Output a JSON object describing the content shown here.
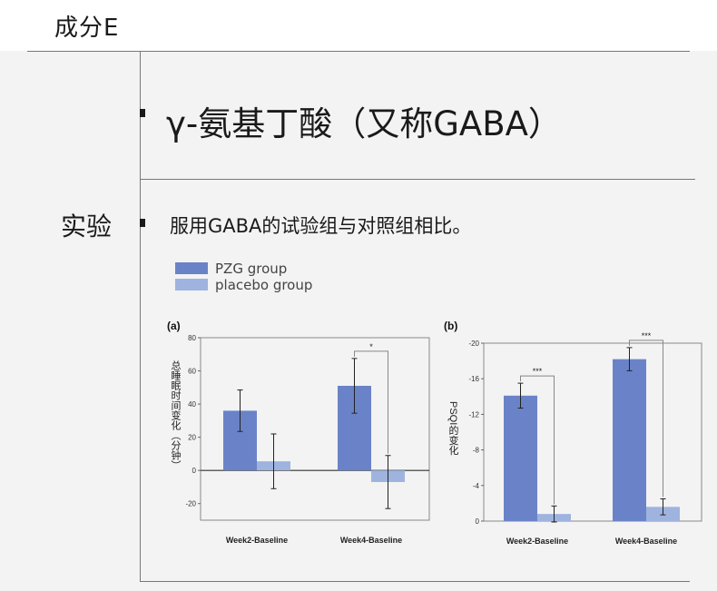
{
  "header": {
    "title": "成分E"
  },
  "component": {
    "title": "γ-氨基丁酸（又称GABA）"
  },
  "experiment": {
    "label": "实验",
    "text": "服用GABA的试验组与对照组相比。"
  },
  "colors": {
    "pzg": "#6a83c8",
    "placebo": "#9fb3df"
  },
  "legend": {
    "pzg": "PZG group",
    "placebo": "placebo group"
  },
  "chart_data": [
    {
      "type": "bar",
      "panel_label": "(a)",
      "ylabel": "总睡眠时间变化（分钟）",
      "categories": [
        "Week2-Baseline",
        "Week4-Baseline"
      ],
      "yticks": [
        80,
        60,
        40,
        20,
        0,
        -20
      ],
      "ylim": [
        -30,
        80
      ],
      "series": [
        {
          "name": "PZG group",
          "values": [
            36,
            51
          ],
          "errors": [
            12.5,
            16.5
          ]
        },
        {
          "name": "placebo group",
          "values": [
            5.5,
            -7
          ],
          "errors": [
            16.5,
            16
          ]
        }
      ],
      "significance": [
        {
          "category": "Week4-Baseline",
          "label": "*"
        }
      ]
    },
    {
      "type": "bar",
      "panel_label": "(b)",
      "ylabel": "PSQI的变化",
      "categories": [
        "Week2-Baseline",
        "Week4-Baseline"
      ],
      "yticks": [
        -20,
        -16,
        -12,
        -8,
        -4,
        0
      ],
      "ylim": [
        0,
        -20
      ],
      "series": [
        {
          "name": "PZG group",
          "values": [
            -14.1,
            -18.2
          ],
          "errors": [
            1.4,
            1.3
          ]
        },
        {
          "name": "placebo group",
          "values": [
            -0.8,
            -1.6
          ],
          "errors": [
            0.9,
            0.9
          ]
        }
      ],
      "significance": [
        {
          "category": "Week2-Baseline",
          "label": "***"
        },
        {
          "category": "Week4-Baseline",
          "label": "***"
        }
      ]
    }
  ]
}
